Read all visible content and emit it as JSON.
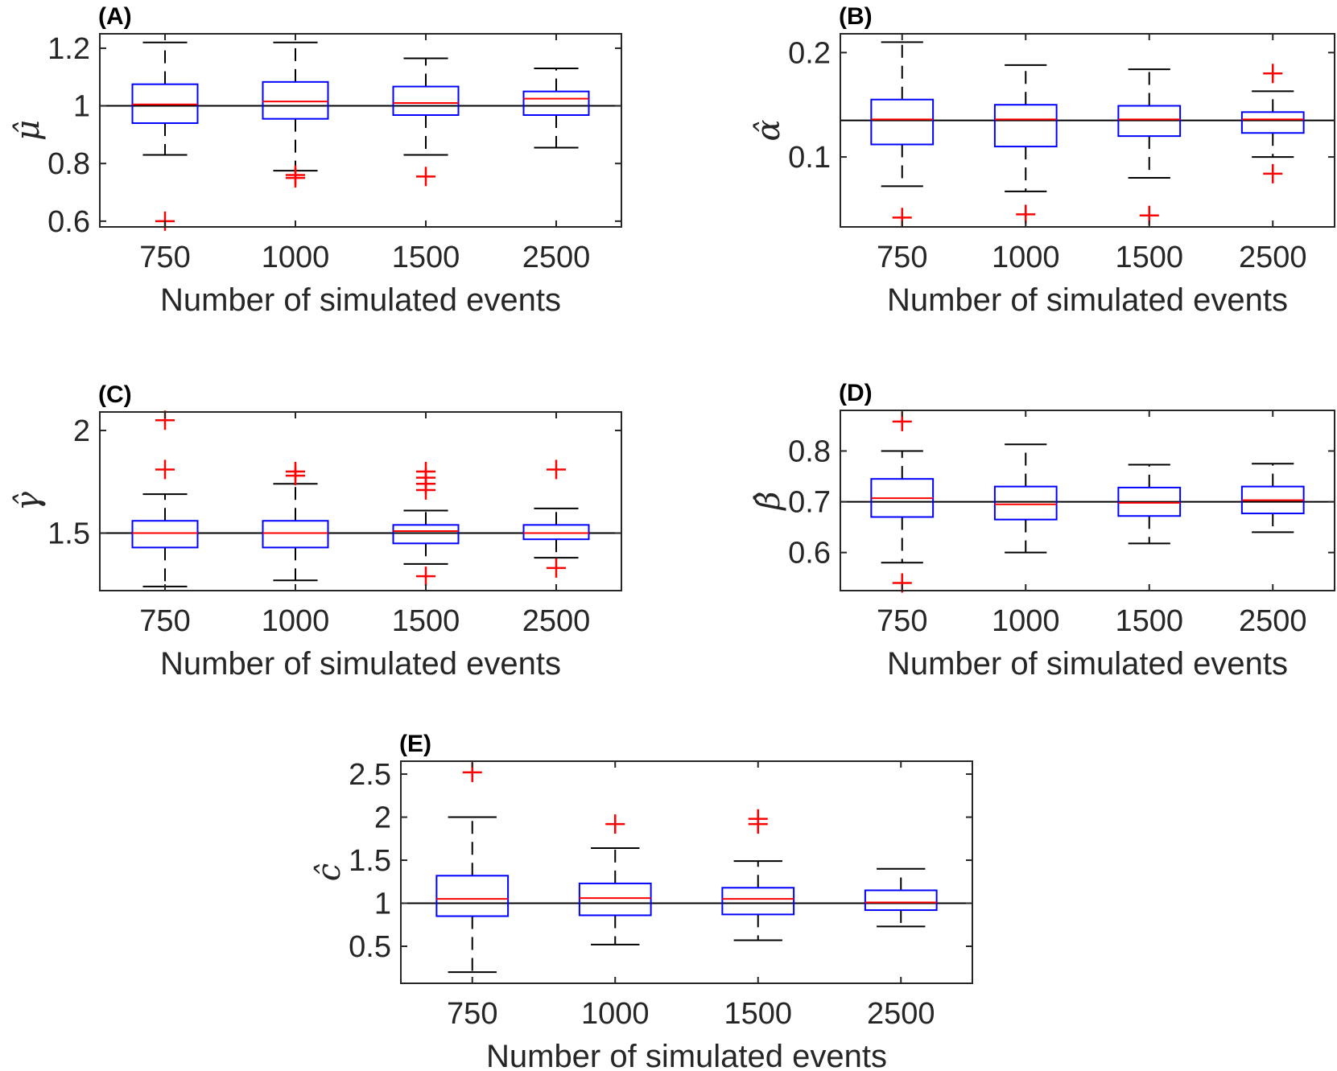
{
  "chart_data": [
    {
      "type": "box",
      "panel": "(A)",
      "xlabel": "Number of simulated events",
      "ylabel": "μ̂",
      "ylabel_base": "μ",
      "categories": [
        "750",
        "1000",
        "1500",
        "2500"
      ],
      "ylim": [
        0.58,
        1.25
      ],
      "yticks": [
        0.6,
        0.8,
        1,
        1.2
      ],
      "ytick_labels": [
        "0.6",
        "0.8",
        "1",
        "1.2"
      ],
      "reference": 1.0,
      "boxes": [
        {
          "whisker_low": 0.83,
          "q1": 0.94,
          "median": 1.005,
          "q3": 1.075,
          "whisker_high": 1.22,
          "outliers": [
            0.6
          ]
        },
        {
          "whisker_low": 0.775,
          "q1": 0.955,
          "median": 1.015,
          "q3": 1.083,
          "whisker_high": 1.22,
          "outliers": [
            0.76,
            0.75
          ]
        },
        {
          "whisker_low": 0.83,
          "q1": 0.968,
          "median": 1.01,
          "q3": 1.067,
          "whisker_high": 1.165,
          "outliers": [
            0.755
          ]
        },
        {
          "whisker_low": 0.855,
          "q1": 0.968,
          "median": 1.025,
          "q3": 1.05,
          "whisker_high": 1.13,
          "outliers": []
        }
      ]
    },
    {
      "type": "box",
      "panel": "(B)",
      "xlabel": "Number of simulated events",
      "ylabel": "α̂",
      "ylabel_base": "α",
      "categories": [
        "750",
        "1000",
        "1500",
        "2500"
      ],
      "ylim": [
        0.033,
        0.218
      ],
      "yticks": [
        0.1,
        0.2
      ],
      "ytick_labels": [
        "0.1",
        "0.2"
      ],
      "reference": 0.135,
      "boxes": [
        {
          "whisker_low": 0.072,
          "q1": 0.112,
          "median": 0.136,
          "q3": 0.155,
          "whisker_high": 0.21,
          "outliers": [
            0.042
          ]
        },
        {
          "whisker_low": 0.067,
          "q1": 0.11,
          "median": 0.136,
          "q3": 0.15,
          "whisker_high": 0.188,
          "outliers": [
            0.045
          ]
        },
        {
          "whisker_low": 0.08,
          "q1": 0.12,
          "median": 0.136,
          "q3": 0.149,
          "whisker_high": 0.184,
          "outliers": [
            0.044
          ]
        },
        {
          "whisker_low": 0.1,
          "q1": 0.123,
          "median": 0.136,
          "q3": 0.143,
          "whisker_high": 0.163,
          "outliers": [
            0.18,
            0.084
          ]
        }
      ]
    },
    {
      "type": "box",
      "panel": "(C)",
      "xlabel": "Number of simulated events",
      "ylabel": "γ̂",
      "ylabel_base": "γ",
      "categories": [
        "750",
        "1000",
        "1500",
        "2500"
      ],
      "ylim": [
        1.22,
        2.09
      ],
      "yticks": [
        1.5,
        2
      ],
      "ytick_labels": [
        "1.5",
        "2"
      ],
      "reference": 1.5,
      "boxes": [
        {
          "whisker_low": 1.24,
          "q1": 1.43,
          "median": 1.5,
          "q3": 1.56,
          "whisker_high": 1.69,
          "outliers": [
            2.05,
            1.81
          ]
        },
        {
          "whisker_low": 1.27,
          "q1": 1.43,
          "median": 1.5,
          "q3": 1.56,
          "whisker_high": 1.74,
          "outliers": [
            1.8,
            1.78
          ]
        },
        {
          "whisker_low": 1.35,
          "q1": 1.45,
          "median": 1.51,
          "q3": 1.54,
          "whisker_high": 1.61,
          "outliers": [
            1.8,
            1.77,
            1.74,
            1.71,
            1.29
          ]
        },
        {
          "whisker_low": 1.38,
          "q1": 1.47,
          "median": 1.5,
          "q3": 1.54,
          "whisker_high": 1.62,
          "outliers": [
            1.81,
            1.33
          ]
        }
      ]
    },
    {
      "type": "box",
      "panel": "(D)",
      "xlabel": "Number of simulated events",
      "ylabel": "β̂",
      "ylabel_base": "β",
      "categories": [
        "750",
        "1000",
        "1500",
        "2500"
      ],
      "ylim": [
        0.525,
        0.88
      ],
      "yticks": [
        0.6,
        0.7,
        0.8
      ],
      "ytick_labels": [
        "0.6",
        "0.7",
        "0.8"
      ],
      "reference": 0.7,
      "boxes": [
        {
          "whisker_low": 0.58,
          "q1": 0.67,
          "median": 0.707,
          "q3": 0.745,
          "whisker_high": 0.8,
          "outliers": [
            0.858,
            0.54
          ]
        },
        {
          "whisker_low": 0.6,
          "q1": 0.665,
          "median": 0.695,
          "q3": 0.73,
          "whisker_high": 0.813,
          "outliers": []
        },
        {
          "whisker_low": 0.618,
          "q1": 0.672,
          "median": 0.698,
          "q3": 0.728,
          "whisker_high": 0.773,
          "outliers": []
        },
        {
          "whisker_low": 0.64,
          "q1": 0.677,
          "median": 0.703,
          "q3": 0.73,
          "whisker_high": 0.775,
          "outliers": []
        }
      ]
    },
    {
      "type": "box",
      "panel": "(E)",
      "xlabel": "Number of simulated events",
      "ylabel": "ĉ",
      "ylabel_base": "c",
      "categories": [
        "750",
        "1000",
        "1500",
        "2500"
      ],
      "ylim": [
        0.07,
        2.65
      ],
      "yticks": [
        0.5,
        1,
        1.5,
        2,
        2.5
      ],
      "ytick_labels": [
        "0.5",
        "1",
        "1.5",
        "2",
        "2.5"
      ],
      "reference": 1.0,
      "boxes": [
        {
          "whisker_low": 0.2,
          "q1": 0.85,
          "median": 1.05,
          "q3": 1.32,
          "whisker_high": 2.0,
          "outliers": [
            2.52
          ]
        },
        {
          "whisker_low": 0.52,
          "q1": 0.86,
          "median": 1.06,
          "q3": 1.23,
          "whisker_high": 1.64,
          "outliers": [
            1.92
          ]
        },
        {
          "whisker_low": 0.57,
          "q1": 0.87,
          "median": 1.05,
          "q3": 1.18,
          "whisker_high": 1.49,
          "outliers": [
            1.98,
            1.92
          ]
        },
        {
          "whisker_low": 0.73,
          "q1": 0.92,
          "median": 1.01,
          "q3": 1.15,
          "whisker_high": 1.4,
          "outliers": []
        }
      ]
    }
  ],
  "colors": {
    "box": "#0000ff",
    "median": "#ff0000",
    "whisker": "#000000",
    "outlier": "#ff0000",
    "reference": "#000000",
    "axis": "#262626"
  }
}
